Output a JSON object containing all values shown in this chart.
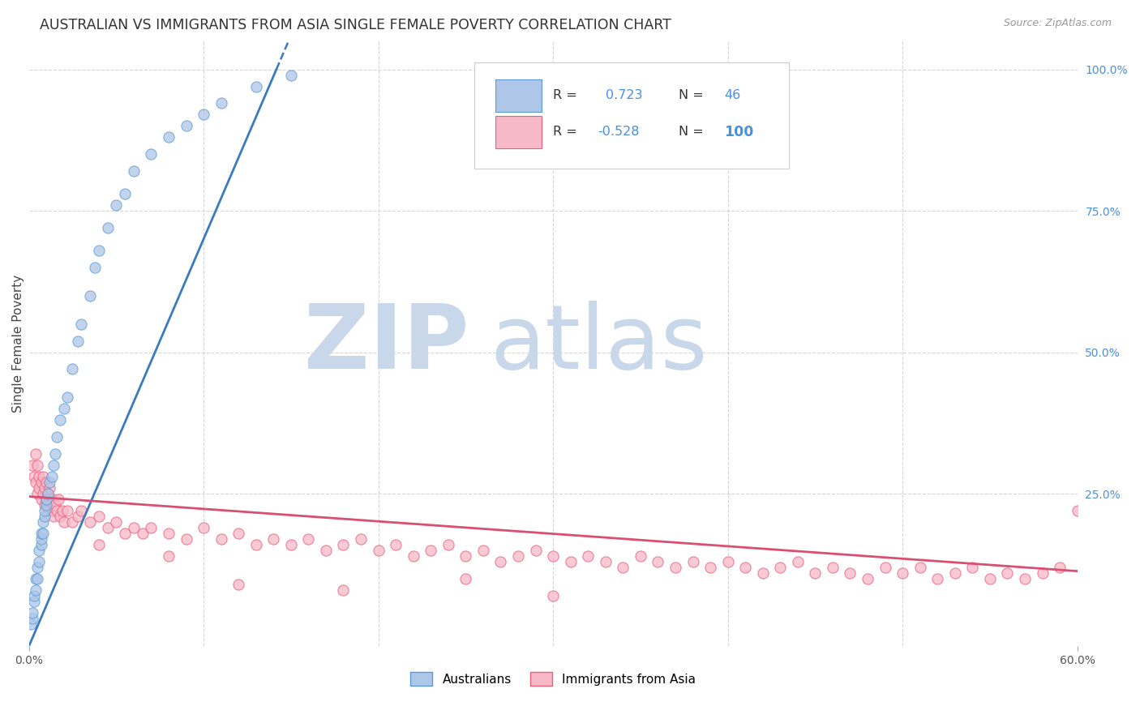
{
  "title": "AUSTRALIAN VS IMMIGRANTS FROM ASIA SINGLE FEMALE POVERTY CORRELATION CHART",
  "source": "Source: ZipAtlas.com",
  "ylabel": "Single Female Poverty",
  "xlim": [
    0.0,
    0.6
  ],
  "ylim": [
    -0.02,
    1.05
  ],
  "R_australian": 0.723,
  "N_australian": 46,
  "R_asian": -0.528,
  "N_asian": 100,
  "blue_dot_face": "#aec6e8",
  "blue_dot_edge": "#5b9bd5",
  "pink_dot_face": "#f7b8c8",
  "pink_dot_edge": "#e8607a",
  "trend_blue_color": "#3a7abf",
  "trend_pink_color": "#d94f70",
  "grid_color": "#bbbbbb",
  "background_color": "#ffffff",
  "aus_x": [
    0.001,
    0.002,
    0.002,
    0.003,
    0.003,
    0.004,
    0.004,
    0.005,
    0.005,
    0.006,
    0.006,
    0.007,
    0.007,
    0.007,
    0.008,
    0.008,
    0.009,
    0.009,
    0.01,
    0.01,
    0.011,
    0.012,
    0.013,
    0.014,
    0.015,
    0.016,
    0.018,
    0.02,
    0.022,
    0.025,
    0.028,
    0.03,
    0.035,
    0.038,
    0.04,
    0.045,
    0.05,
    0.055,
    0.06,
    0.07,
    0.08,
    0.09,
    0.1,
    0.11,
    0.13,
    0.15
  ],
  "aus_y": [
    0.02,
    0.03,
    0.04,
    0.06,
    0.07,
    0.08,
    0.1,
    0.1,
    0.12,
    0.13,
    0.15,
    0.16,
    0.17,
    0.18,
    0.18,
    0.2,
    0.21,
    0.22,
    0.23,
    0.24,
    0.25,
    0.27,
    0.28,
    0.3,
    0.32,
    0.35,
    0.38,
    0.4,
    0.42,
    0.47,
    0.52,
    0.55,
    0.6,
    0.65,
    0.68,
    0.72,
    0.76,
    0.78,
    0.82,
    0.85,
    0.88,
    0.9,
    0.92,
    0.94,
    0.97,
    0.99
  ],
  "asia_x": [
    0.002,
    0.003,
    0.004,
    0.004,
    0.005,
    0.005,
    0.006,
    0.006,
    0.007,
    0.007,
    0.008,
    0.008,
    0.009,
    0.009,
    0.01,
    0.01,
    0.011,
    0.011,
    0.012,
    0.012,
    0.013,
    0.013,
    0.014,
    0.015,
    0.016,
    0.017,
    0.018,
    0.019,
    0.02,
    0.022,
    0.025,
    0.028,
    0.03,
    0.035,
    0.04,
    0.045,
    0.05,
    0.055,
    0.06,
    0.065,
    0.07,
    0.08,
    0.09,
    0.1,
    0.11,
    0.12,
    0.13,
    0.14,
    0.15,
    0.16,
    0.17,
    0.18,
    0.19,
    0.2,
    0.21,
    0.22,
    0.23,
    0.24,
    0.25,
    0.26,
    0.27,
    0.28,
    0.29,
    0.3,
    0.31,
    0.32,
    0.33,
    0.34,
    0.35,
    0.36,
    0.37,
    0.38,
    0.39,
    0.4,
    0.41,
    0.42,
    0.43,
    0.44,
    0.45,
    0.46,
    0.47,
    0.48,
    0.49,
    0.5,
    0.51,
    0.52,
    0.53,
    0.54,
    0.55,
    0.56,
    0.57,
    0.58,
    0.59,
    0.6,
    0.3,
    0.25,
    0.18,
    0.12,
    0.08,
    0.04
  ],
  "asia_y": [
    0.3,
    0.28,
    0.27,
    0.32,
    0.25,
    0.3,
    0.26,
    0.28,
    0.24,
    0.27,
    0.25,
    0.28,
    0.23,
    0.26,
    0.24,
    0.27,
    0.22,
    0.25,
    0.24,
    0.26,
    0.22,
    0.24,
    0.21,
    0.23,
    0.22,
    0.24,
    0.21,
    0.22,
    0.2,
    0.22,
    0.2,
    0.21,
    0.22,
    0.2,
    0.21,
    0.19,
    0.2,
    0.18,
    0.19,
    0.18,
    0.19,
    0.18,
    0.17,
    0.19,
    0.17,
    0.18,
    0.16,
    0.17,
    0.16,
    0.17,
    0.15,
    0.16,
    0.17,
    0.15,
    0.16,
    0.14,
    0.15,
    0.16,
    0.14,
    0.15,
    0.13,
    0.14,
    0.15,
    0.14,
    0.13,
    0.14,
    0.13,
    0.12,
    0.14,
    0.13,
    0.12,
    0.13,
    0.12,
    0.13,
    0.12,
    0.11,
    0.12,
    0.13,
    0.11,
    0.12,
    0.11,
    0.1,
    0.12,
    0.11,
    0.12,
    0.1,
    0.11,
    0.12,
    0.1,
    0.11,
    0.1,
    0.11,
    0.12,
    0.22,
    0.07,
    0.1,
    0.08,
    0.09,
    0.14,
    0.16
  ],
  "trend_blue_slope": 7.2,
  "trend_blue_intercept": -0.02,
  "trend_pink_slope": -0.22,
  "trend_pink_intercept": 0.245
}
